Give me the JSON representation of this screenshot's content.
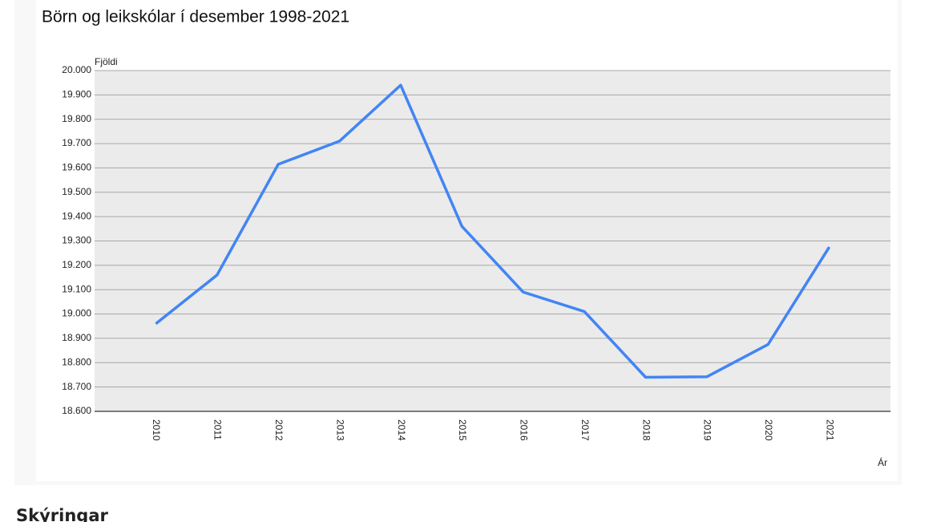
{
  "chart_data": {
    "type": "line",
    "title": "Börn og leikskólar í desember 1998-2021",
    "y_label": "Fjöldi",
    "x_label": "Ár",
    "categories": [
      "2010",
      "2011",
      "2012",
      "2013",
      "2014",
      "2015",
      "2016",
      "2017",
      "2018",
      "2019",
      "2020",
      "2021"
    ],
    "series": [
      {
        "color": "#4285f4",
        "values": [
          18960,
          19160,
          19615,
          19710,
          19940,
          19360,
          19090,
          19010,
          18740,
          18742,
          18875,
          19275
        ]
      }
    ],
    "ylim": [
      18600,
      20000
    ],
    "yticks": [
      {
        "value": 18600,
        "label": "18.600"
      },
      {
        "value": 18700,
        "label": "18.700"
      },
      {
        "value": 18800,
        "label": "18.800"
      },
      {
        "value": 18900,
        "label": "18.900"
      },
      {
        "value": 19000,
        "label": "19.000"
      },
      {
        "value": 19100,
        "label": "19.100"
      },
      {
        "value": 19200,
        "label": "19.200"
      },
      {
        "value": 19300,
        "label": "19.300"
      },
      {
        "value": 19400,
        "label": "19.400"
      },
      {
        "value": 19500,
        "label": "19.500"
      },
      {
        "value": 19600,
        "label": "19.600"
      },
      {
        "value": 19700,
        "label": "19.700"
      },
      {
        "value": 19800,
        "label": "19.800"
      },
      {
        "value": 19900,
        "label": "19.900"
      },
      {
        "value": 20000,
        "label": "20.000"
      }
    ],
    "grid": true
  },
  "section_heading": "Skýringar"
}
